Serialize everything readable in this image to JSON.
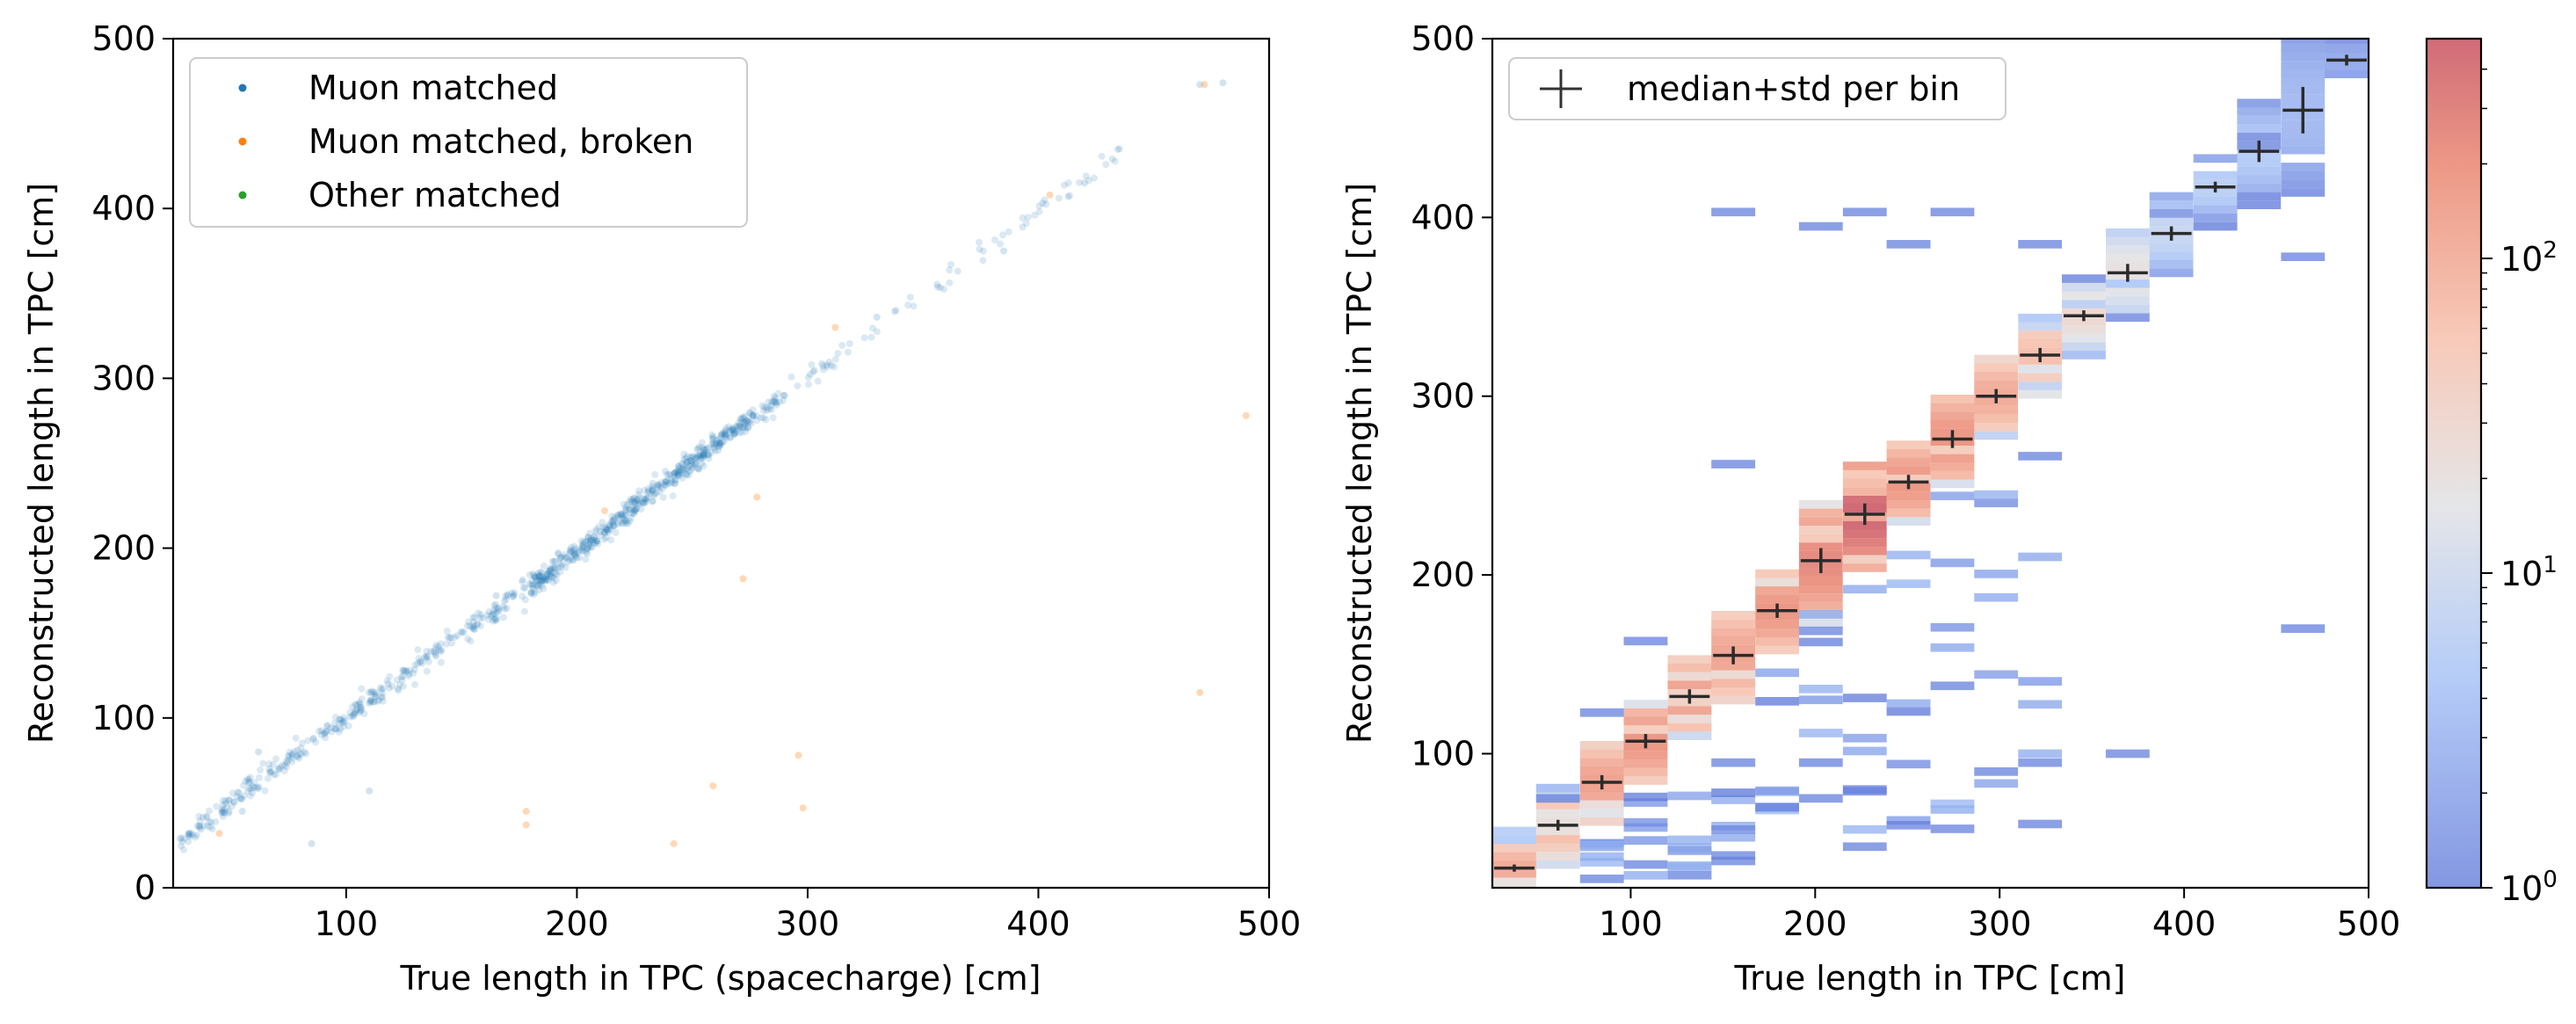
{
  "chart_data": [
    {
      "type": "scatter",
      "xlabel": "True length in TPC (spacecharge) [cm]",
      "ylabel": "Reconstructed length in TPC [cm]",
      "xlim": [
        25,
        500
      ],
      "ylim": [
        0,
        500
      ],
      "xticks": [
        "100",
        "200",
        "300",
        "400",
        "500"
      ],
      "yticks": [
        "0",
        "100",
        "200",
        "300",
        "400",
        "500"
      ],
      "legend_position": "top-left",
      "series": [
        {
          "name": "Muon matched",
          "color": "#1f77b4",
          "trend": [
            [
              28,
              28
            ],
            [
              60,
              60
            ],
            [
              100,
              100
            ],
            [
              150,
              150
            ],
            [
              200,
              197
            ],
            [
              230,
              230
            ],
            [
              260,
              261
            ],
            [
              300,
              300
            ],
            [
              350,
              350
            ],
            [
              400,
              400
            ],
            [
              437,
              434
            ]
          ],
          "outliers": [
            [
              85,
              26
            ],
            [
              110,
              57
            ],
            [
              330,
              336
            ],
            [
              385,
              375
            ],
            [
              420,
              415
            ],
            [
              470,
              473
            ],
            [
              480,
              474
            ],
            [
              62,
              80
            ],
            [
              55,
              45
            ],
            [
              110,
              115
            ],
            [
              165,
              172
            ],
            [
              290,
              290
            ]
          ]
        },
        {
          "name": "Muon matched, broken",
          "color": "#ff7f0e",
          "points": [
            [
              45,
              32
            ],
            [
              178,
              45
            ],
            [
              178,
              37
            ],
            [
              242,
              26
            ],
            [
              259,
              60
            ],
            [
              272,
              182
            ],
            [
              278,
              230
            ],
            [
              298,
              47
            ],
            [
              296,
              78
            ],
            [
              312,
              330
            ],
            [
              470,
              115
            ],
            [
              472,
              473
            ],
            [
              490,
              278
            ],
            [
              405,
              408
            ],
            [
              212,
              222
            ]
          ]
        },
        {
          "name": "Other matched",
          "color": "#2ca02c",
          "points": []
        }
      ]
    },
    {
      "type": "heatmap",
      "xlabel": "True length in TPC [cm]",
      "ylabel": "Reconstructed length in TPC [cm]",
      "xlim": [
        25,
        500
      ],
      "ylim": [
        25,
        500
      ],
      "xticks": [
        "100",
        "200",
        "300",
        "400",
        "500"
      ],
      "yticks": [
        "100",
        "200",
        "300",
        "400",
        "500"
      ],
      "colormap": "coolwarm",
      "color_scale": "log",
      "colorbar_ticks": [
        "10^0",
        "10^1",
        "10^2"
      ],
      "colorbar_range": [
        1,
        500
      ],
      "legend": "median+std per bin",
      "legend_position": "top-left",
      "bin_centers": [
        36.9,
        60.6,
        84.4,
        108.1,
        131.9,
        155.6,
        179.4,
        203.1,
        226.9,
        250.6,
        274.4,
        298.1,
        321.9,
        345.6,
        369.4,
        393.1,
        416.9,
        440.6,
        464.4,
        488.1
      ],
      "median": [
        36,
        60,
        84,
        107,
        132,
        155,
        180,
        208,
        234,
        252,
        276,
        300,
        323,
        345,
        369,
        391,
        417,
        437,
        460,
        488
      ],
      "std": [
        2,
        3,
        4,
        4,
        4,
        5,
        4,
        7,
        6,
        4,
        5,
        4,
        4,
        3,
        5,
        4,
        3,
        6,
        13,
        3
      ],
      "peak_counts": [
        120,
        90,
        150,
        200,
        160,
        140,
        200,
        250,
        500,
        200,
        200,
        120,
        70,
        30,
        20,
        8,
        6,
        5,
        3,
        2
      ],
      "hot_spots": [
        [
          155.6,
          403
        ],
        [
          226.9,
          403
        ],
        [
          274.4,
          403
        ],
        [
          203.1,
          395
        ],
        [
          250.6,
          385
        ],
        [
          321.9,
          385
        ],
        [
          464.4,
          170
        ],
        [
          464.4,
          378
        ],
        [
          369.4,
          100
        ],
        [
          321.9,
          95
        ],
        [
          298.1,
          90
        ],
        [
          179.4,
          70
        ],
        [
          203.1,
          75
        ],
        [
          226.9,
          80
        ],
        [
          250.6,
          60
        ],
        [
          274.4,
          58
        ],
        [
          155.6,
          40
        ],
        [
          131.9,
          32
        ],
        [
          84.4,
          30
        ],
        [
          108.1,
          38
        ],
        [
          155.6,
          262
        ],
        [
          274.4,
          138
        ],
        [
          108.1,
          163
        ],
        [
          226.9,
          48
        ],
        [
          203.1,
          95
        ],
        [
          155.6,
          95
        ],
        [
          60.6,
          75
        ],
        [
          84.4,
          123
        ]
      ]
    }
  ]
}
